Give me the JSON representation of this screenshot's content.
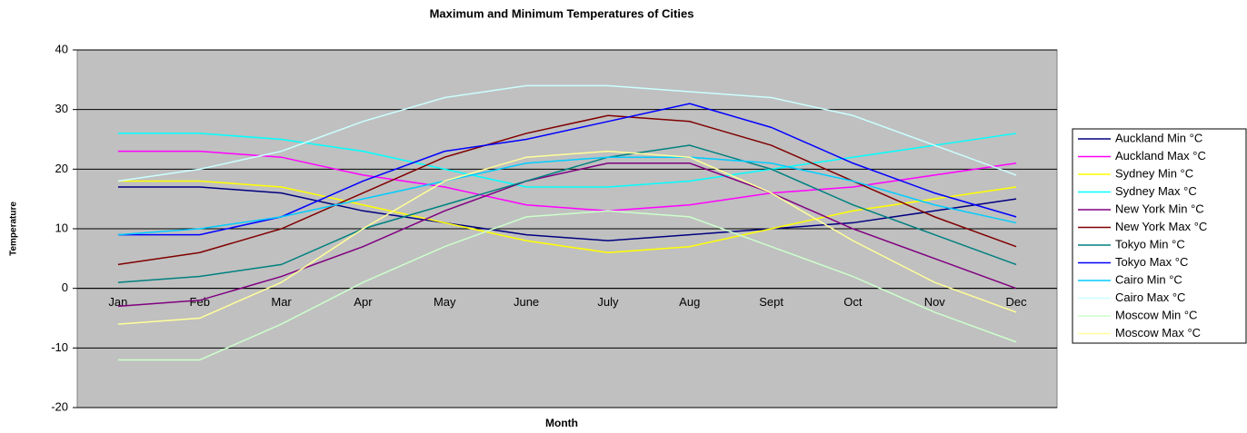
{
  "chart_data": {
    "type": "line",
    "title": "Maximum and Minimum Temperatures of Cities",
    "x_label": "Month",
    "y_label": "Temperature",
    "categories": [
      "Jan",
      "Feb",
      "Mar",
      "Apr",
      "May",
      "June",
      "July",
      "Aug",
      "Sept",
      "Oct",
      "Nov",
      "Dec"
    ],
    "ylim": [
      -20,
      40
    ],
    "yticks": [
      -20,
      -10,
      0,
      10,
      20,
      30,
      40
    ],
    "grid": true,
    "legend": "right",
    "series": [
      {
        "name": "Auckland Min °C",
        "color": "#000080",
        "values": [
          17,
          17,
          16,
          13,
          11,
          9,
          8,
          9,
          10,
          11,
          13,
          15
        ]
      },
      {
        "name": "Auckland Max °C",
        "color": "#ff00ff",
        "values": [
          23,
          23,
          22,
          19,
          17,
          14,
          13,
          14,
          16,
          17,
          19,
          21
        ]
      },
      {
        "name": "Sydney Min °C",
        "color": "#ffff00",
        "values": [
          18,
          18,
          17,
          14,
          11,
          8,
          6,
          7,
          10,
          13,
          15,
          17
        ]
      },
      {
        "name": "Sydney Max °C",
        "color": "#00ffff",
        "values": [
          26,
          26,
          25,
          23,
          20,
          17,
          17,
          18,
          20,
          22,
          24,
          26
        ]
      },
      {
        "name": "New York Min °C",
        "color": "#800080",
        "values": [
          -3,
          -2,
          2,
          7,
          13,
          18,
          21,
          21,
          16,
          10,
          5,
          0
        ]
      },
      {
        "name": "New York Max °C",
        "color": "#800000",
        "values": [
          4,
          6,
          10,
          16,
          22,
          26,
          29,
          28,
          24,
          18,
          12,
          7
        ]
      },
      {
        "name": "Tokyo Min °C",
        "color": "#008080",
        "values": [
          1,
          2,
          4,
          10,
          14,
          18,
          22,
          24,
          20,
          14,
          9,
          4
        ]
      },
      {
        "name": "Tokyo Max °C",
        "color": "#0000ff",
        "values": [
          9,
          9,
          12,
          18,
          23,
          25,
          28,
          31,
          27,
          21,
          16,
          12
        ]
      },
      {
        "name": "Cairo Min °C",
        "color": "#00ccff",
        "values": [
          9,
          10,
          12,
          15,
          18,
          21,
          22,
          22,
          21,
          18,
          14,
          11
        ]
      },
      {
        "name": "Cairo Max °C",
        "color": "#ccffff",
        "values": [
          18,
          20,
          23,
          28,
          32,
          34,
          34,
          33,
          32,
          29,
          24,
          19
        ]
      },
      {
        "name": "Moscow Min °C",
        "color": "#ccffcc",
        "values": [
          -12,
          -12,
          -6,
          1,
          7,
          12,
          13,
          12,
          7,
          2,
          -4,
          -9
        ]
      },
      {
        "name": "Moscow Max °C",
        "color": "#ffff99",
        "values": [
          -6,
          -5,
          1,
          10,
          18,
          22,
          23,
          22,
          16,
          8,
          1,
          -4
        ]
      }
    ]
  }
}
